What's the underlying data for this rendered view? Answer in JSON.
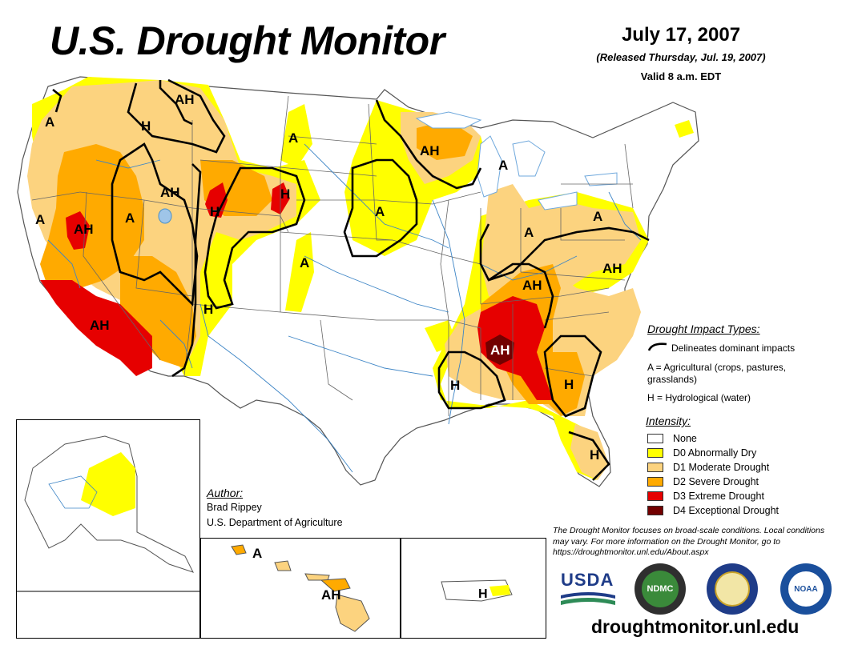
{
  "title": "U.S. Drought Monitor",
  "date": "July 17, 2007",
  "released": "(Released Thursday, Jul. 19, 2007)",
  "valid": "Valid 8 a.m. EDT",
  "impact_types": {
    "heading": "Drought Impact Types:",
    "delineates": "Delineates dominant impacts",
    "agricultural": "A = Agricultural (crops, pastures, grasslands)",
    "hydrological": "H = Hydrological (water)"
  },
  "intensity": {
    "heading": "Intensity:",
    "levels": [
      {
        "label": "None",
        "color": "#ffffff"
      },
      {
        "label": "D0 Abnormally Dry",
        "color": "#ffff00"
      },
      {
        "label": "D1 Moderate Drought",
        "color": "#fcd37f"
      },
      {
        "label": "D2 Severe Drought",
        "color": "#ffaa00"
      },
      {
        "label": "D3 Extreme Drought",
        "color": "#e60000"
      },
      {
        "label": "D4 Exceptional Drought",
        "color": "#730000"
      }
    ]
  },
  "author": {
    "heading": "Author:",
    "name": "Brad Rippey",
    "org": "U.S. Department of Agriculture"
  },
  "note": "The Drought Monitor focuses on broad-scale conditions. Local conditions may vary. For more information on the Drought Monitor, go to https://droughtmonitor.unl.edu/About.aspx",
  "logos": {
    "usda": "USDA",
    "ndmc": "NDMC",
    "noaa": "NOAA"
  },
  "url": "droughtmonitor.unl.edu",
  "map_labels": {
    "nw_coast": "A",
    "n_idaho_ah": "AH",
    "n_idaho_h": "H",
    "idaho_ah": "AH",
    "n_cal": "A",
    "nevada_ah": "AH",
    "great_basin": "A",
    "montana_east": "A",
    "wyoming_h": "H",
    "wyoming_west": "H",
    "colorado": "A",
    "new_mexico": "H",
    "socal": "AH",
    "upper_midwest": "AH",
    "mn_iowa": "A",
    "michigan": "A",
    "ohio_valley": "A",
    "pennsylvania": "A",
    "mid_atlantic": "AH",
    "kentucky": "AH",
    "southeast": "AH",
    "gulf": "H",
    "georgia": "H",
    "florida": "H",
    "hawaii_a": "A",
    "hawaii_ah": "AH",
    "puerto_rico": "H"
  }
}
